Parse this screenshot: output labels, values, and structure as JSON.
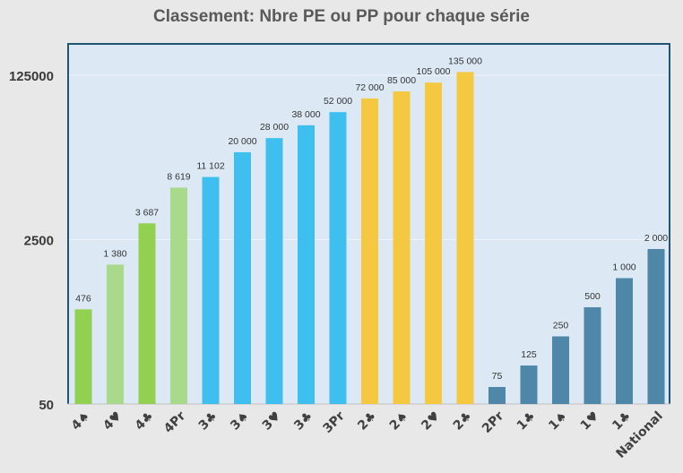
{
  "chart_data": {
    "type": "bar",
    "title": "Classement: Nbre PE ou PP pour chaque série",
    "xlabel": "",
    "ylabel": "",
    "scale": "log",
    "yticks": [
      "50",
      "2500",
      "125000"
    ],
    "ytick_values": [
      50,
      2500,
      125000
    ],
    "categories": [
      "4♠",
      "4♥",
      "4♣",
      "4Pr",
      "3♣",
      "3♠",
      "3♥",
      "3♣",
      "3Pr",
      "2♣",
      "2♠",
      "2♥",
      "2♣",
      "2Pr",
      "1♣",
      "1♠",
      "1♥",
      "1♣",
      "National"
    ],
    "values": [
      476,
      1380,
      3687,
      8619,
      11102,
      20000,
      28000,
      38000,
      52000,
      72000,
      85000,
      105000,
      135000,
      75,
      125,
      250,
      500,
      1000,
      2000
    ],
    "labels": [
      "476",
      "1 380",
      "3 687",
      "8 619",
      "11 102",
      "20 000",
      "28 000",
      "38 000",
      "52 000",
      "72 000",
      "85 000",
      "105 000",
      "135 000",
      "75",
      "125",
      "250",
      "500",
      "1 000",
      "2 000"
    ],
    "colors": [
      "#92d050",
      "#a9d98a",
      "#92d050",
      "#a9d98a",
      "#3fbff0",
      "#3fbff0",
      "#3fbff0",
      "#3fbff0",
      "#3fbff0",
      "#f5c842",
      "#f5c842",
      "#f5c842",
      "#f5c842",
      "#4f87a8",
      "#4f87a8",
      "#4f87a8",
      "#4f87a8",
      "#4f87a8",
      "#4f87a8"
    ],
    "grid": true
  }
}
